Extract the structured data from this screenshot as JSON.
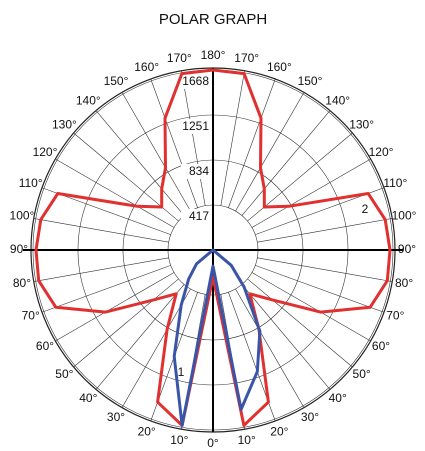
{
  "chart_data": {
    "type": "polar",
    "title": "POLAR GRAPH",
    "rlim": [
      0,
      1668
    ],
    "rticks": [
      417,
      834,
      1251,
      1668
    ],
    "thetaticks": [
      {
        "value": -170,
        "label": "170°"
      },
      {
        "value": -160,
        "label": "160°"
      },
      {
        "value": -150,
        "label": "150°"
      },
      {
        "value": -140,
        "label": "140°"
      },
      {
        "value": -130,
        "label": "130°"
      },
      {
        "value": -120,
        "label": "120°"
      },
      {
        "value": -110,
        "label": "110°"
      },
      {
        "value": -100,
        "label": "100°"
      },
      {
        "value": -90,
        "label": "90°"
      },
      {
        "value": -80,
        "label": "80°"
      },
      {
        "value": -70,
        "label": "70°"
      },
      {
        "value": -60,
        "label": "60°"
      },
      {
        "value": -50,
        "label": "50°"
      },
      {
        "value": -40,
        "label": "40°"
      },
      {
        "value": -30,
        "label": "30°"
      },
      {
        "value": -20,
        "label": "20°"
      },
      {
        "value": -10,
        "label": "10°"
      },
      {
        "value": 0,
        "label": "0°"
      },
      {
        "value": 10,
        "label": "10°"
      },
      {
        "value": 20,
        "label": "20°"
      },
      {
        "value": 30,
        "label": "30°"
      },
      {
        "value": 40,
        "label": "40°"
      },
      {
        "value": 50,
        "label": "50°"
      },
      {
        "value": 60,
        "label": "60°"
      },
      {
        "value": 70,
        "label": "70°"
      },
      {
        "value": 80,
        "label": "80°"
      },
      {
        "value": 90,
        "label": "90°"
      },
      {
        "value": 100,
        "label": "100°"
      },
      {
        "value": 110,
        "label": "110°"
      },
      {
        "value": 120,
        "label": "120°"
      },
      {
        "value": 130,
        "label": "130°"
      },
      {
        "value": 140,
        "label": "140°"
      },
      {
        "value": 150,
        "label": "150°"
      },
      {
        "value": 160,
        "label": "160°"
      },
      {
        "value": 170,
        "label": "170°"
      },
      {
        "value": 180,
        "label": "180°"
      }
    ],
    "theta": [
      -180,
      -170,
      -160,
      -150,
      -140,
      -130,
      -120,
      -110,
      -100,
      -90,
      -80,
      -70,
      -60,
      -50,
      -40,
      -30,
      -20,
      -10,
      0,
      10,
      20,
      30,
      40,
      50,
      60,
      70,
      80,
      90,
      100,
      110,
      120,
      130,
      140,
      150,
      160,
      170
    ],
    "series": [
      {
        "name": "2",
        "color": "#e03030",
        "values": [
          1668,
          1660,
          1300,
          880,
          740,
          620,
          810,
          1530,
          1620,
          1640,
          1640,
          1550,
          1150,
          720,
          530,
          850,
          1500,
          1650,
          250,
          1650,
          1500,
          850,
          530,
          720,
          1150,
          1550,
          1640,
          1640,
          1620,
          1530,
          810,
          620,
          740,
          880,
          1300,
          1660
        ]
      },
      {
        "name": "1",
        "color": "#3a55a8",
        "values": [
          0,
          0,
          0,
          0,
          0,
          0,
          0,
          0,
          0,
          0,
          0,
          0,
          0,
          200,
          350,
          590,
          1050,
          1650,
          150,
          1500,
          1200,
          870,
          450,
          220,
          0,
          0,
          0,
          0,
          0,
          0,
          0,
          0,
          0,
          0,
          0,
          0
        ]
      }
    ]
  }
}
